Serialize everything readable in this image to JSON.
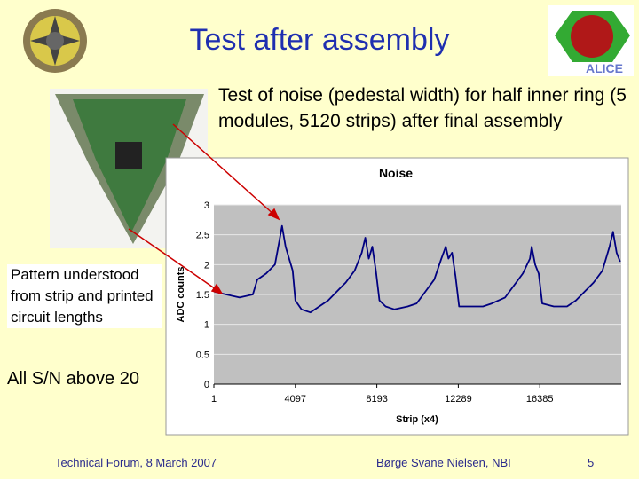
{
  "slide": {
    "title": "Test after assembly",
    "body": "Test of noise (pedestal width) for half inner ring (5 modules, 5120 strips) after final assembly",
    "pattern": "Pattern understood from strip and printed circuit lengths",
    "sn": "All S/N above 20",
    "footer_left": "Technical Forum, 8 March 2007",
    "footer_right": "Børge Svane Nielsen, NBI",
    "page": "5"
  },
  "chart_data": {
    "type": "line",
    "title": "Noise",
    "xlabel": "Strip (x4)",
    "ylabel": "ADC counts",
    "xlim": [
      1,
      20481
    ],
    "xticks": [
      1,
      4097,
      8193,
      12289,
      16385
    ],
    "ylim": [
      0,
      3
    ],
    "yticks": [
      0,
      0.5,
      1,
      1.5,
      2,
      2.5,
      3
    ],
    "grid": true,
    "x": [
      1,
      624,
      1292,
      1959,
      2182,
      2627,
      3072,
      3294,
      3428,
      3606,
      3784,
      3962,
      4095,
      4407,
      4852,
      5297,
      5742,
      6187,
      6632,
      7077,
      7433,
      7611,
      7789,
      7967,
      8145,
      8323,
      8634,
      9079,
      9747,
      10192,
      10637,
      11082,
      11438,
      11660,
      11794,
      11972,
      12150,
      12328,
      12862,
      13529,
      13974,
      14642,
      15087,
      15532,
      15888,
      15977,
      16155,
      16332,
      16510,
      17089,
      17757,
      18202,
      18647,
      19092,
      19537,
      19893,
      20071,
      20249,
      20427
    ],
    "series": [
      {
        "color": "#000080",
        "values": [
          1.55,
          1.5,
          1.45,
          1.5,
          1.75,
          1.85,
          2.0,
          2.4,
          2.65,
          2.3,
          2.1,
          1.9,
          1.4,
          1.25,
          1.2,
          1.3,
          1.4,
          1.55,
          1.7,
          1.9,
          2.2,
          2.45,
          2.1,
          2.3,
          1.9,
          1.4,
          1.3,
          1.25,
          1.3,
          1.35,
          1.55,
          1.75,
          2.1,
          2.3,
          2.1,
          2.2,
          1.8,
          1.3,
          1.3,
          1.3,
          1.35,
          1.45,
          1.65,
          1.85,
          2.1,
          2.3,
          2.0,
          1.85,
          1.35,
          1.3,
          1.3,
          1.4,
          1.55,
          1.7,
          1.9,
          2.3,
          2.55,
          2.2,
          2.05
        ]
      }
    ]
  }
}
